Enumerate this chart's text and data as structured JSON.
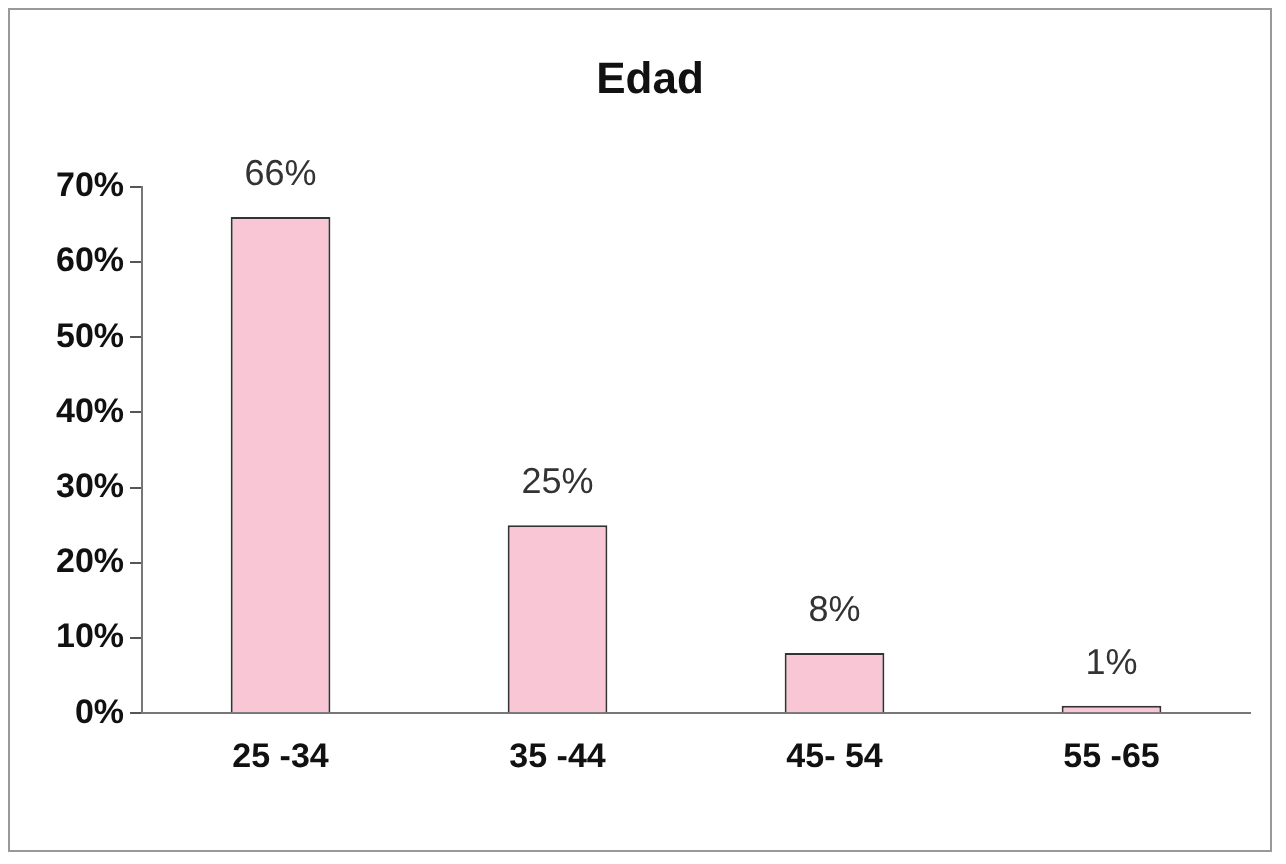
{
  "chart_data": {
    "type": "bar",
    "title": "Edad",
    "categories": [
      "25 -34",
      "35 -44",
      "45- 54",
      "55 -65"
    ],
    "values": [
      66,
      25,
      8,
      1
    ],
    "value_labels": [
      "66%",
      "25%",
      "8%",
      "1%"
    ],
    "color": "#f9c6d6",
    "ylim": [
      0,
      70
    ],
    "yticks": [
      {
        "value": 0,
        "label": "0%"
      },
      {
        "value": 10,
        "label": "10%"
      },
      {
        "value": 20,
        "label": "20%"
      },
      {
        "value": 30,
        "label": "30%"
      },
      {
        "value": 40,
        "label": "40%"
      },
      {
        "value": 50,
        "label": "50%"
      },
      {
        "value": 60,
        "label": "60%"
      },
      {
        "value": 70,
        "label": "70%"
      }
    ],
    "grid": false,
    "legend": false
  }
}
